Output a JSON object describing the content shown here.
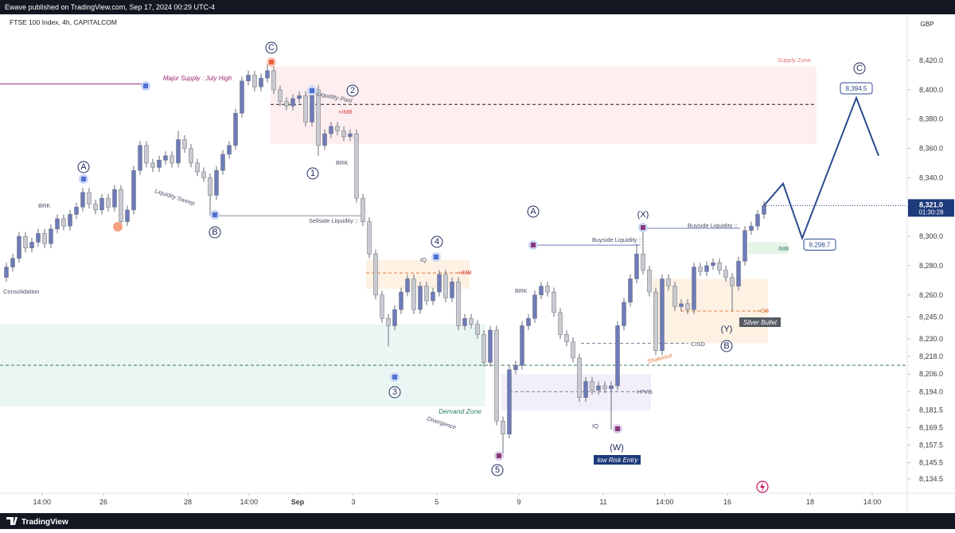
{
  "header": {
    "publisher": "Ewave published on TradingView.com, Sep 17, 2024 00:29 UTC-4",
    "brand": "TradingView"
  },
  "chart_data": {
    "type": "candlestick",
    "title": "FTSE 100 Index, 4h, CAPITALCOM",
    "currency": "GBP",
    "open": [
      8272,
      8279,
      8285,
      8300,
      8292,
      8296,
      8302,
      8295,
      8305,
      8312,
      8307,
      8315,
      8320,
      8330,
      8322,
      8318,
      8326,
      8320,
      8332,
      8310,
      8318,
      8345,
      8362,
      8350,
      8347,
      8352,
      8355,
      8350,
      8366,
      8360,
      8350,
      8344,
      8340,
      8328,
      8345,
      8356,
      8362,
      8384,
      8406,
      8410,
      8402,
      8408,
      8413,
      8400,
      8392,
      8389,
      8394,
      8396,
      8378,
      8400,
      8362,
      8370,
      8375,
      8372,
      8368,
      8370,
      8326,
      8310,
      8288,
      8260,
      8244,
      8239,
      8250,
      8262,
      8271,
      8250,
      8266,
      8256,
      8262,
      8274,
      8258,
      8269,
      8239,
      8244,
      8240,
      8233,
      8214,
      8236,
      8174,
      8165,
      8209,
      8212,
      8239,
      8244,
      8260,
      8266,
      8262,
      8248,
      8233,
      8228,
      8217,
      8190,
      8201,
      8195,
      8198,
      8196,
      8198,
      8239,
      8255,
      8271,
      8288,
      8277,
      8262,
      8222,
      8271,
      8266,
      8252,
      8254,
      8250,
      8279,
      8276,
      8280,
      8282,
      8277,
      8272,
      8266,
      8283,
      8304,
      8307,
      8315
    ],
    "high": [
      8282,
      8288,
      8303,
      8303,
      8299,
      8305,
      8305,
      8308,
      8315,
      8315,
      8318,
      8323,
      8333,
      8333,
      8325,
      8329,
      8329,
      8335,
      8335,
      8321,
      8348,
      8365,
      8365,
      8353,
      8355,
      8358,
      8358,
      8372,
      8369,
      8363,
      8353,
      8347,
      8343,
      8348,
      8359,
      8365,
      8387,
      8409,
      8413,
      8413,
      8411,
      8419,
      8416,
      8403,
      8395,
      8397,
      8399,
      8399,
      8403,
      8403,
      8373,
      8378,
      8378,
      8375,
      8373,
      8373,
      8329,
      8313,
      8291,
      8263,
      8247,
      8253,
      8265,
      8274,
      8274,
      8269,
      8269,
      8265,
      8277,
      8277,
      8272,
      8272,
      8247,
      8247,
      8243,
      8236,
      8239,
      8239,
      8177,
      8212,
      8215,
      8242,
      8247,
      8263,
      8269,
      8269,
      8265,
      8251,
      8236,
      8231,
      8220,
      8204,
      8204,
      8201,
      8201,
      8201,
      8242,
      8258,
      8274,
      8295,
      8307,
      8280,
      8265,
      8274,
      8274,
      8269,
      8257,
      8257,
      8282,
      8282,
      8283,
      8285,
      8285,
      8280,
      8275,
      8286,
      8307,
      8310,
      8318,
      8324
    ],
    "low": [
      8269,
      8276,
      8282,
      8289,
      8289,
      8293,
      8292,
      8292,
      8302,
      8304,
      8304,
      8312,
      8317,
      8319,
      8315,
      8315,
      8317,
      8317,
      8305,
      8307,
      8315,
      8342,
      8347,
      8344,
      8344,
      8349,
      8347,
      8347,
      8357,
      8347,
      8341,
      8337,
      8314,
      8325,
      8342,
      8353,
      8359,
      8381,
      8403,
      8399,
      8399,
      8405,
      8397,
      8389,
      8386,
      8386,
      8391,
      8375,
      8375,
      8355,
      8359,
      8367,
      8369,
      8365,
      8365,
      8323,
      8307,
      8285,
      8257,
      8241,
      8225,
      8236,
      8247,
      8259,
      8247,
      8247,
      8253,
      8253,
      8259,
      8255,
      8255,
      8236,
      8236,
      8237,
      8230,
      8211,
      8211,
      8171,
      8152,
      8162,
      8206,
      8209,
      8236,
      8241,
      8257,
      8259,
      8245,
      8230,
      8225,
      8214,
      8187,
      8187,
      8192,
      8192,
      8193,
      8168,
      8195,
      8236,
      8252,
      8268,
      8274,
      8259,
      8219,
      8219,
      8263,
      8249,
      8249,
      8247,
      8247,
      8273,
      8273,
      8277,
      8274,
      8269,
      8249,
      8263,
      8280,
      8301,
      8304,
      8312
    ],
    "close": [
      8279,
      8285,
      8300,
      8292,
      8296,
      8302,
      8295,
      8305,
      8312,
      8307,
      8315,
      8320,
      8330,
      8322,
      8318,
      8326,
      8320,
      8332,
      8310,
      8318,
      8345,
      8362,
      8350,
      8347,
      8352,
      8355,
      8350,
      8366,
      8360,
      8350,
      8344,
      8340,
      8328,
      8345,
      8356,
      8362,
      8384,
      8406,
      8410,
      8402,
      8408,
      8413,
      8400,
      8392,
      8389,
      8394,
      8396,
      8378,
      8400,
      8362,
      8370,
      8375,
      8372,
      8368,
      8370,
      8326,
      8310,
      8288,
      8260,
      8244,
      8239,
      8250,
      8262,
      8271,
      8250,
      8266,
      8256,
      8262,
      8274,
      8258,
      8269,
      8239,
      8244,
      8240,
      8233,
      8214,
      8236,
      8174,
      8165,
      8209,
      8212,
      8239,
      8244,
      8260,
      8266,
      8262,
      8248,
      8233,
      8228,
      8217,
      8190,
      8201,
      8195,
      8198,
      8196,
      8198,
      8239,
      8255,
      8271,
      8288,
      8277,
      8262,
      8222,
      8271,
      8266,
      8252,
      8254,
      8250,
      8279,
      8276,
      8280,
      8282,
      8277,
      8272,
      8266,
      8283,
      8304,
      8307,
      8315,
      8321
    ],
    "up_color": "#6d7bb8",
    "down_color": "#c9cbd1",
    "xlim": [
      -1,
      141.5
    ],
    "xticks": [
      {
        "value": 5.6,
        "label": "14:00"
      },
      {
        "value": 15.25,
        "label": "26"
      },
      {
        "value": 28.5,
        "label": "28"
      },
      {
        "value": 38.1,
        "label": "14:00"
      },
      {
        "value": 45.75,
        "label": "Sep"
      },
      {
        "value": 54.5,
        "label": "3"
      },
      {
        "value": 67.6,
        "label": "5"
      },
      {
        "value": 80.5,
        "label": "9"
      },
      {
        "value": 93.75,
        "label": "11"
      },
      {
        "value": 103.4,
        "label": "14:00"
      },
      {
        "value": 113.25,
        "label": "16"
      },
      {
        "value": 126.25,
        "label": "18"
      },
      {
        "value": 136,
        "label": "14:00"
      }
    ],
    "ylim": [
      8124.7,
      8451.5
    ],
    "yticks": [
      {
        "value": 8134.5,
        "label": "8,134.5"
      },
      {
        "value": 8145.5,
        "label": "8,145.5"
      },
      {
        "value": 8157.5,
        "label": "8,157.5"
      },
      {
        "value": 8169.5,
        "label": "8,169.5"
      },
      {
        "value": 8181.5,
        "label": "8,181.5"
      },
      {
        "value": 8194,
        "label": "8,194.0"
      },
      {
        "value": 8206,
        "label": "8,206.0"
      },
      {
        "value": 8218,
        "label": "8,218.0"
      },
      {
        "value": 8230,
        "label": "8,230.0"
      },
      {
        "value": 8245,
        "label": "8,245.0"
      },
      {
        "value": 8260,
        "label": "8,260.0"
      },
      {
        "value": 8280,
        "label": "8,280.0"
      },
      {
        "value": 8300,
        "label": "8,300.0"
      },
      {
        "value": 8320,
        "label": "8,320.0"
      },
      {
        "value": 8340,
        "label": "8,340.0"
      },
      {
        "value": 8360,
        "label": "8,360.0"
      },
      {
        "value": 8380,
        "label": "8,380.0"
      },
      {
        "value": 8400,
        "label": "8,400.0"
      },
      {
        "value": 8420,
        "label": "8,420.0"
      }
    ],
    "grid": false,
    "last_price": {
      "value": 8321,
      "label": "8,321.0"
    },
    "countdown": "01:30:28",
    "projection": {
      "color": "#2b4a8f",
      "x": [
        119,
        122,
        125,
        133.5,
        137
      ],
      "values": [
        8321,
        8336,
        8298.7,
        8394.5,
        8355
      ]
    },
    "targets": [
      {
        "value": 8298.7,
        "label": "8,298.7"
      },
      {
        "value": 8394.5,
        "label": "8,394.5"
      }
    ],
    "zones": [
      {
        "top": 8416,
        "bottom": 8363,
        "from": 41.5,
        "to": 127.25,
        "color": "#fdeef0"
      },
      {
        "top": 8240,
        "bottom": 8184,
        "from": -1,
        "to": 75.25,
        "color": "#eaf6f3"
      },
      {
        "top": 8206,
        "bottom": 8181,
        "from": 77.75,
        "to": 101.25,
        "color": "#f2eefa"
      },
      {
        "top": 8284,
        "bottom": 8264,
        "from": 56.5,
        "to": 72.75,
        "color": "#fdf1e4"
      },
      {
        "top": 8271,
        "bottom": 8227,
        "from": 101.5,
        "to": 119.6,
        "color": "#fdf1e4"
      },
      {
        "top": 8296,
        "bottom": 8288,
        "from": 116.5,
        "to": 122.75,
        "color": "#e6f4e8"
      }
    ],
    "levels": [
      {
        "value": 8404,
        "from": -1,
        "to": 21.9,
        "color": "#9c2770",
        "dash": false
      },
      {
        "value": 8390,
        "from": 41.5,
        "to": 127.1,
        "color": "#222222",
        "dash": true
      },
      {
        "value": 8212,
        "from": -1,
        "to": 141.5,
        "color": "#2e7d5b",
        "dash": true
      },
      {
        "value": 8314,
        "from": 32.75,
        "to": 55.9,
        "color": "#8a8f9c",
        "dash": false
      },
      {
        "value": 8294,
        "from": 82.75,
        "to": 99.6,
        "color": "#6d7bb8",
        "dash": false
      },
      {
        "value": 8305.5,
        "from": 100,
        "to": 115.25,
        "color": "#6d7bb8",
        "dash": false
      },
      {
        "value": 8227,
        "from": 90.25,
        "to": 107.1,
        "color": "#7e7e9e",
        "dash": true
      },
      {
        "value": 8194,
        "from": 79,
        "to": 101.25,
        "color": "#7e7e9e",
        "dash": true
      },
      {
        "value": 8275,
        "from": 56.5,
        "to": 72.75,
        "color": "#e07a3a",
        "dash": true
      },
      {
        "value": 8249,
        "from": 105.9,
        "to": 119.6,
        "color": "#e07a3a",
        "dash": true
      }
    ],
    "annotations": [
      "Major Supply : July High",
      "Supply Zone",
      "Liquidity Pool",
      "+IMB",
      "BRK",
      "BRK",
      "Liquidity Sweep",
      "Consolidation",
      "Sellside Liquidity ::",
      "IQ",
      "+IMB",
      "Demand Zone",
      "Divergence",
      "BRK",
      "Buyside Liquidity ::",
      "Buyside Liquidity ::",
      "IMB",
      "+OB",
      "CISD",
      "Shakeout",
      "I-FVG",
      "IQ",
      "Silver Bullet",
      "low Risk Entry"
    ],
    "wave_labels": [
      "C",
      "2",
      "1",
      "A",
      "B",
      "4",
      "3",
      "5",
      "A",
      "(X)",
      "(W)",
      "(Y)",
      "B",
      "C"
    ]
  }
}
